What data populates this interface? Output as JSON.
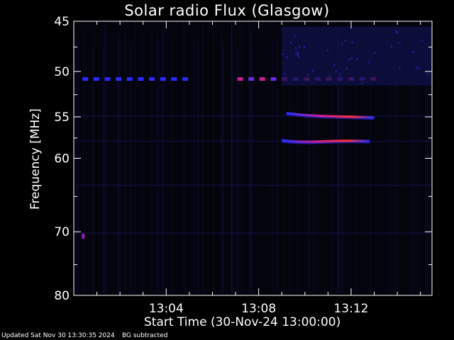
{
  "chart_data": {
    "type": "heatmap",
    "title": "Solar radio Flux (Glasgow)",
    "xlabel": "Start Time (30-Nov-24 13:00:00)",
    "ylabel": "Frequency [MHz]",
    "x_unit": "minutes after 13:00:00",
    "xlim": [
      0,
      15.5
    ],
    "ylim": [
      80,
      45
    ],
    "y_scale": "log",
    "x_ticks": [
      {
        "value": 4,
        "label": "13:04"
      },
      {
        "value": 8,
        "label": "13:08"
      },
      {
        "value": 12,
        "label": "13:12"
      }
    ],
    "y_ticks": [
      {
        "value": 45,
        "label": "45"
      },
      {
        "value": 50,
        "label": "50"
      },
      {
        "value": 55,
        "label": "55"
      },
      {
        "value": 60,
        "label": "60"
      },
      {
        "value": 70,
        "label": "70"
      },
      {
        "value": 80,
        "label": "80"
      }
    ],
    "grid": false,
    "colors": {
      "background": "#000000",
      "frame": "#ffffff",
      "low": "#1818e0",
      "mid": "#9020c0",
      "high": "#ff3030"
    },
    "features": [
      {
        "kind": "dashed-line",
        "name": "interference line",
        "freq_mhz": 50.8,
        "t_start": 0.5,
        "t_end": 5.0,
        "intensity": "medium"
      },
      {
        "kind": "dashed-line",
        "name": "interference line",
        "freq_mhz": 50.8,
        "t_start": 7.2,
        "t_end": 13.0,
        "intensity": "high"
      },
      {
        "kind": "burst-band",
        "name": "upper emission lane",
        "freq_mhz_start": 54.6,
        "freq_mhz_end": 55.1,
        "t_start": 9.2,
        "t_end": 13.0,
        "intensity": "high"
      },
      {
        "kind": "burst-band",
        "name": "lower emission lane",
        "freq_mhz_start": 57.8,
        "freq_mhz_end": 57.9,
        "t_start": 9.0,
        "t_end": 12.8,
        "intensity": "high"
      },
      {
        "kind": "block",
        "name": "background noise patch",
        "freq_mhz_start": 45.5,
        "freq_mhz_end": 51.5,
        "t_start": 9.0,
        "t_end": 15.5,
        "intensity": "low"
      },
      {
        "kind": "spot",
        "name": "isolated spot",
        "freq_mhz": 70.6,
        "t": 0.1,
        "intensity": "medium"
      }
    ]
  },
  "footer": {
    "updated": "Updated Sat Nov 30 13:30:35 2024",
    "note": "BG subtracted"
  }
}
